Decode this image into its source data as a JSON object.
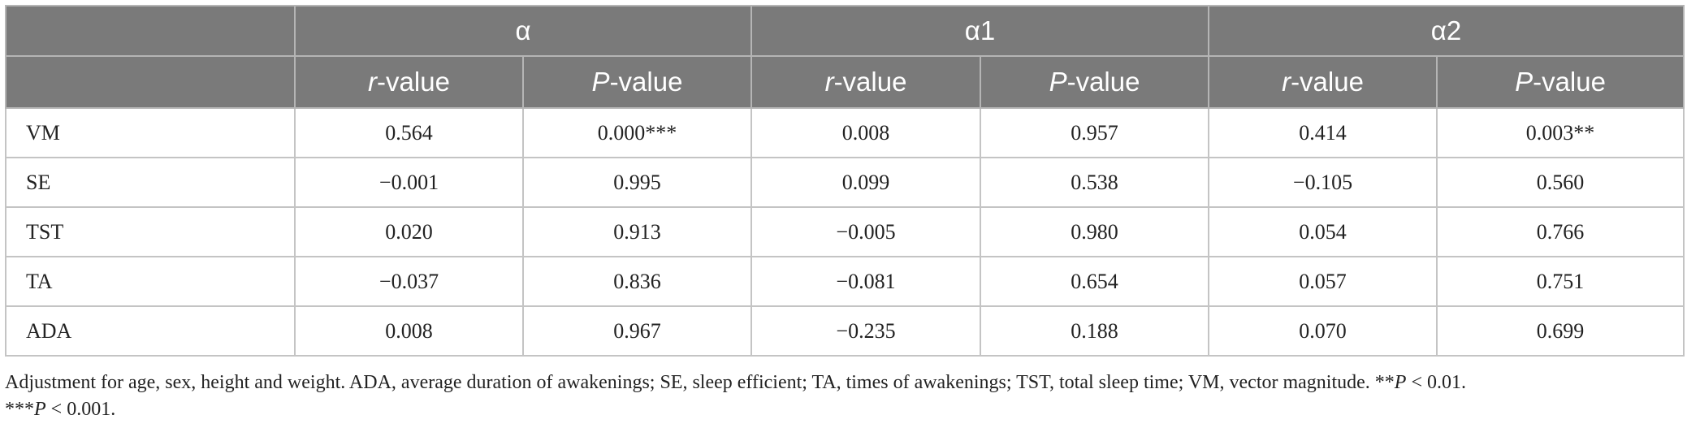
{
  "table": {
    "group_headers": [
      "",
      "α",
      "α1",
      "α2"
    ],
    "sub_headers": [
      {
        "italic": "",
        "rest": ""
      },
      {
        "italic": "r",
        "rest": "-value"
      },
      {
        "italic": "P",
        "rest": "-value"
      },
      {
        "italic": "r",
        "rest": "-value"
      },
      {
        "italic": "P",
        "rest": "-value"
      },
      {
        "italic": "r",
        "rest": "-value"
      },
      {
        "italic": "P",
        "rest": "-value"
      }
    ],
    "rows": [
      {
        "label": "VM",
        "values": [
          "0.564",
          "0.000***",
          "0.008",
          "0.957",
          "0.414",
          "0.003**"
        ]
      },
      {
        "label": "SE",
        "values": [
          "−0.001",
          "0.995",
          "0.099",
          "0.538",
          "−0.105",
          "0.560"
        ]
      },
      {
        "label": "TST",
        "values": [
          "0.020",
          "0.913",
          "−0.005",
          "0.980",
          "0.054",
          "0.766"
        ]
      },
      {
        "label": "TA",
        "values": [
          "−0.037",
          "0.836",
          "−0.081",
          "0.654",
          "0.057",
          "0.751"
        ]
      },
      {
        "label": "ADA",
        "values": [
          "0.008",
          "0.967",
          "−0.235",
          "0.188",
          "0.070",
          "0.699"
        ]
      }
    ]
  },
  "footnote": {
    "main": "Adjustment for age, sex, height and weight. ADA, average duration of awakenings; SE, sleep efficient; TA, times of awakenings; TST, total sleep time; VM, vector magnitude. **",
    "p1_var": "P",
    "p1_rest": " < 0.01.",
    "p2_prefix": "***",
    "p2_var": "P",
    "p2_rest": " < 0.001."
  }
}
